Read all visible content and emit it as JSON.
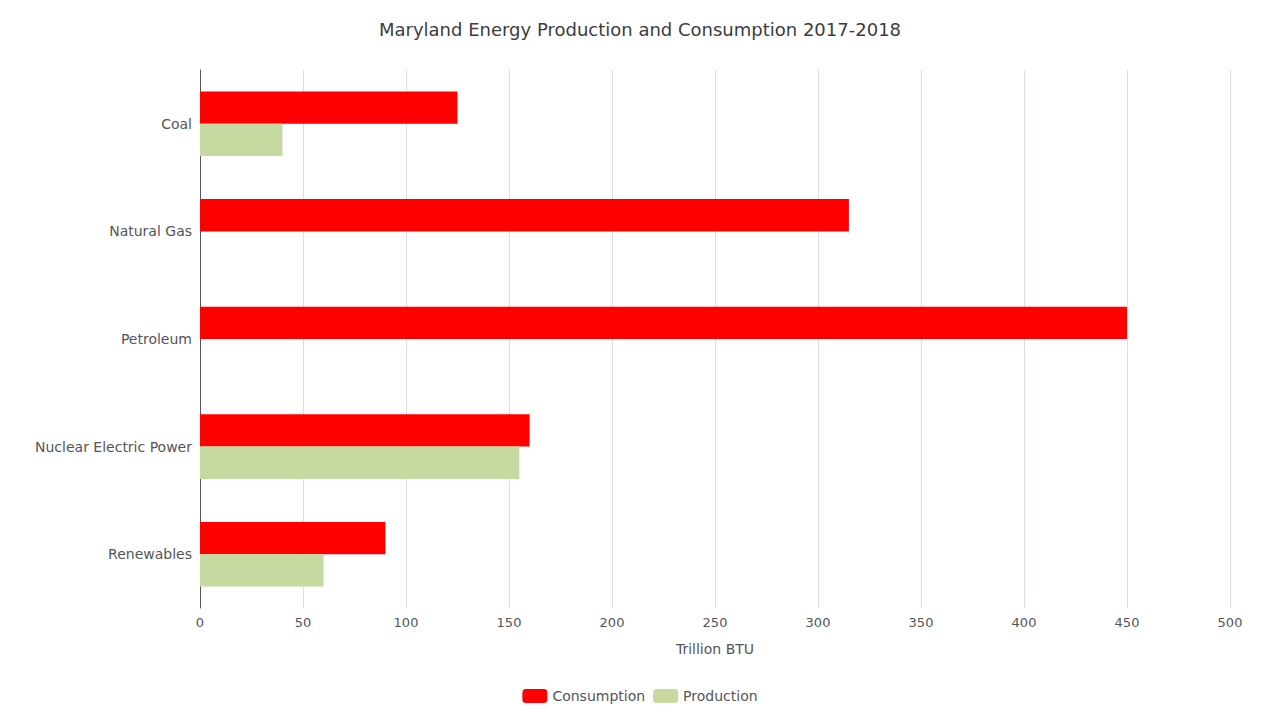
{
  "chart_data": {
    "type": "bar",
    "orientation": "horizontal",
    "title": "Maryland Energy Production and Consumption 2017-2018",
    "categories": [
      "Coal",
      "Natural Gas",
      "Petroleum",
      "Nuclear Electric Power",
      "Renewables"
    ],
    "series": [
      {
        "name": "Consumption",
        "color": "#FF0000",
        "values": [
          125,
          315,
          450,
          160,
          90
        ]
      },
      {
        "name": "Production",
        "color": "#C5D9A0",
        "values": [
          40,
          0,
          0,
          155,
          60
        ]
      }
    ],
    "xlabel": "Trillion BTU",
    "xlim": [
      0,
      500
    ],
    "xticks": [
      0,
      50,
      100,
      150,
      200,
      250,
      300,
      350,
      400,
      450,
      500
    ],
    "grid": true,
    "legend": "bottom"
  }
}
